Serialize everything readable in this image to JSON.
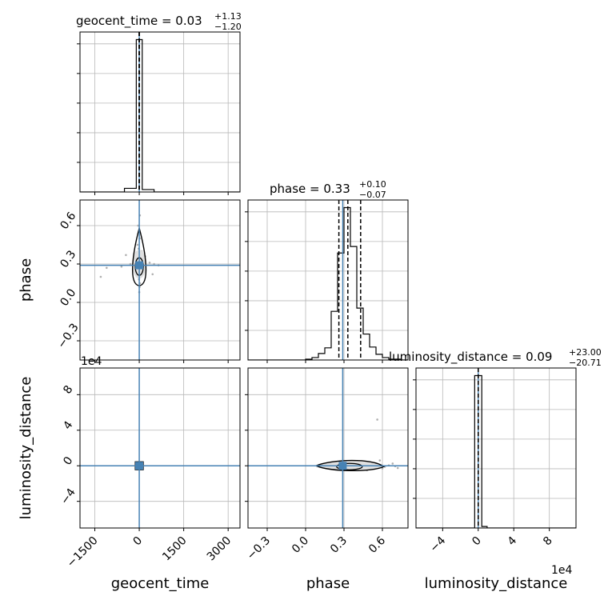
{
  "chart_data": {
    "type": "corner",
    "grid": true,
    "truth_color": "#4682b4",
    "line_color": "#000000",
    "sample_color": "#b0b0b0",
    "parameters": [
      {
        "name": "geocent_time",
        "axis_label": "geocent_time",
        "title_label": "geocent_time",
        "median": "0.03",
        "plus": "+1.13",
        "minus": "−1.20",
        "range": [
          -2000,
          3400
        ],
        "ticks": [
          -1500,
          0,
          1500,
          3000
        ],
        "tick_labels": [
          "−1500",
          "0",
          "1500",
          "3000"
        ],
        "truth": 0,
        "quantiles": [
          -1.17,
          0.03,
          1.16
        ],
        "offset_label": "",
        "hist_edges": [
          -1000,
          -500,
          -100,
          100,
          500,
          1000
        ],
        "hist_counts": [
          0,
          12,
          500,
          8,
          0
        ]
      },
      {
        "name": "phase",
        "axis_label": "phase",
        "title_label": "phase",
        "median": "0.33",
        "plus": "+0.10",
        "minus": "−0.07",
        "range": [
          -0.45,
          0.8
        ],
        "ticks": [
          -0.3,
          0.0,
          0.3,
          0.6
        ],
        "tick_labels": [
          "−0.3",
          "0.0",
          "0.3",
          "0.6"
        ],
        "truth": 0.29,
        "quantiles": [
          0.26,
          0.33,
          0.43
        ],
        "offset_label": "",
        "hist_edges": [
          0.0,
          0.05,
          0.1,
          0.15,
          0.2,
          0.25,
          0.3,
          0.35,
          0.4,
          0.45,
          0.5,
          0.55,
          0.6,
          0.65,
          0.7,
          0.75,
          0.8
        ],
        "hist_counts": [
          1,
          3,
          8,
          15,
          60,
          132,
          188,
          140,
          64,
          32,
          16,
          7,
          3,
          1,
          1,
          0
        ]
      },
      {
        "name": "luminosity_distance",
        "axis_label": "luminosity_distance",
        "title_label": "luminosity_distance",
        "median": "0.09",
        "plus": "+23.00",
        "minus": "−20.71",
        "range": [
          -70000,
          110000
        ],
        "ticks": [
          -40000,
          0,
          40000,
          80000
        ],
        "tick_labels": [
          "−4",
          "0",
          "4",
          "8"
        ],
        "truth": 0,
        "quantiles": [
          -20.62,
          0.09,
          23.09
        ],
        "offset_label": "1e4",
        "hist_edges": [
          -10000,
          -4000,
          4000,
          10000
        ],
        "hist_counts": [
          0,
          500,
          5
        ]
      }
    ],
    "scatter_samples": {
      "geocent_time_vs_phase": [
        [
          12,
          0.5
        ],
        [
          -20,
          0.42
        ],
        [
          30,
          0.38
        ],
        [
          -8,
          0.35
        ],
        [
          15,
          0.31
        ],
        [
          -35,
          0.29
        ],
        [
          40,
          0.26
        ],
        [
          5,
          0.22
        ],
        [
          -12,
          0.18
        ],
        [
          25,
          0.15
        ],
        [
          -300,
          0.3
        ],
        [
          350,
          0.31
        ],
        [
          -150,
          0.25
        ],
        [
          200,
          0.36
        ],
        [
          500,
          0.3
        ],
        [
          -600,
          0.28
        ],
        [
          -1100,
          0.27
        ],
        [
          -1300,
          0.2
        ],
        [
          -40,
          0.6
        ],
        [
          20,
          0.68
        ],
        [
          0,
          0.08
        ],
        [
          -60,
          0.45
        ],
        [
          80,
          0.4
        ],
        [
          -90,
          0.33
        ],
        [
          110,
          0.27
        ],
        [
          450,
          0.22
        ],
        [
          -450,
          0.37
        ],
        [
          650,
          0.29
        ],
        [
          -5,
          0.55
        ],
        [
          10,
          0.12
        ]
      ],
      "geocent_time_vs_luminosity_distance": [
        [
          -50,
          -3000
        ],
        [
          40,
          2000
        ],
        [
          -20,
          4000
        ],
        [
          30,
          -2000
        ],
        [
          0,
          1000
        ],
        [
          -80,
          -1000
        ],
        [
          90,
          3000
        ],
        [
          10,
          -4000
        ]
      ],
      "phase_vs_luminosity_distance": [
        [
          0.33,
          -2000
        ],
        [
          0.4,
          3000
        ],
        [
          0.5,
          -1500
        ],
        [
          0.55,
          2000
        ],
        [
          0.6,
          -3000
        ],
        [
          0.25,
          1000
        ],
        [
          0.38,
          -4500
        ],
        [
          0.45,
          4000
        ],
        [
          0.52,
          1000
        ],
        [
          0.58,
          6000
        ],
        [
          0.62,
          -1000
        ],
        [
          0.68,
          2500
        ],
        [
          0.72,
          -2500
        ],
        [
          0.35,
          5000
        ],
        [
          0.48,
          -5000
        ],
        [
          0.42,
          1500
        ],
        [
          0.3,
          -1000
        ],
        [
          0.65,
          500
        ],
        [
          0.56,
          52000
        ],
        [
          0.7,
          -500
        ]
      ]
    }
  }
}
